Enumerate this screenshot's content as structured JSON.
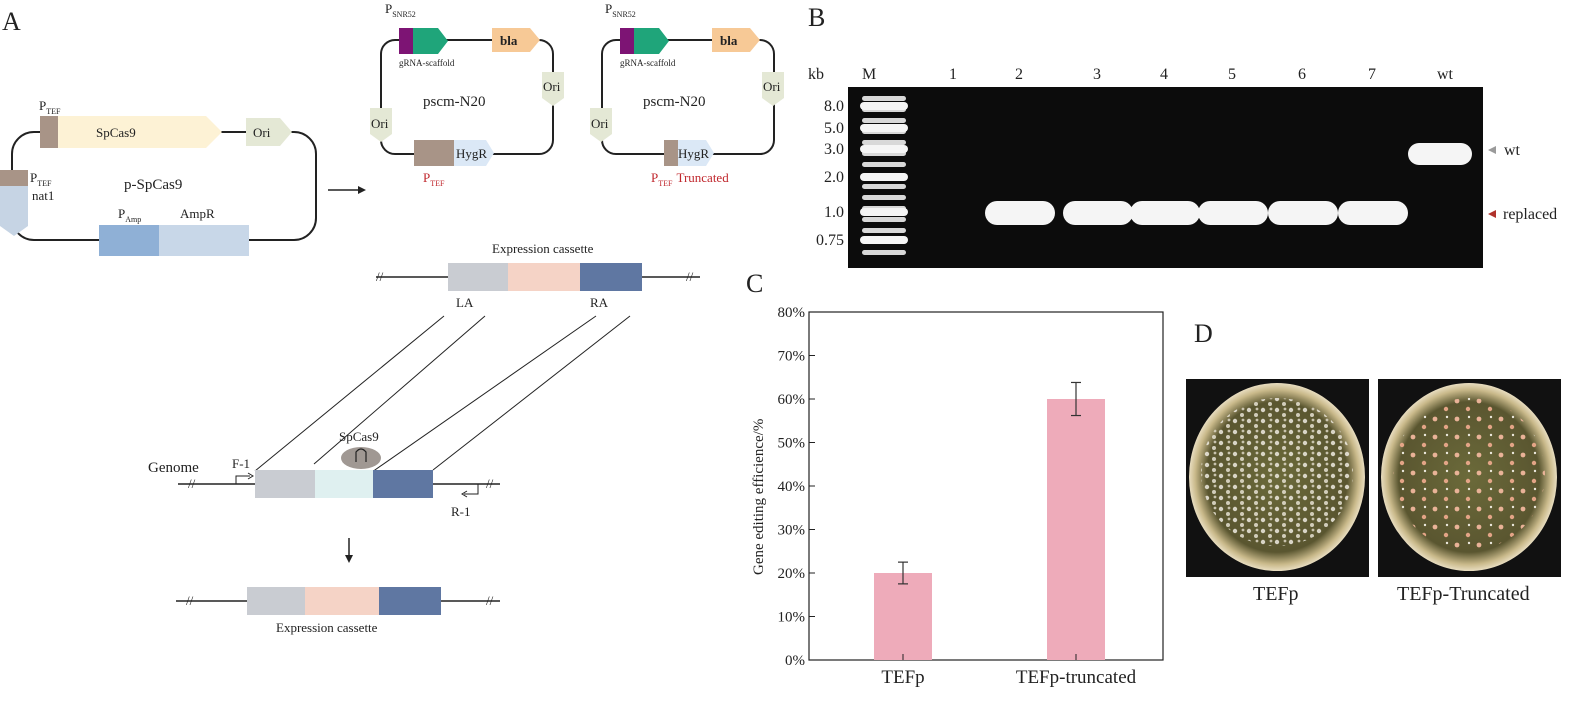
{
  "panels": {
    "A": "A",
    "B": "B",
    "C": "C",
    "D": "D"
  },
  "panel_a": {
    "plasmid1": {
      "name": "p-SpCas9",
      "ptef_top": "P",
      "ptef_top_sub": "TEF",
      "spcas9": "SpCas9",
      "ori": "Ori",
      "ptef_left": "P",
      "ptef_left_sub": "TEF",
      "nat1": "nat1",
      "pamp": "P",
      "pamp_sub": "Amp",
      "ampr": "AmpR"
    },
    "plasmid2": {
      "psnr": "P",
      "psnr_sub": "SNR52",
      "scaffold": "gRNA-scaffold",
      "bla": "bla",
      "ori_right": "Ori",
      "name": "pscm-N20",
      "ori_left": "Ori",
      "hygr": "HygR",
      "ptef": "P",
      "ptef_sub": "TEF"
    },
    "plasmid3": {
      "psnr": "P",
      "psnr_sub": "SNR52",
      "scaffold": "gRNA-scaffold",
      "bla": "bla",
      "ori_right": "Ori",
      "name": "pscm-N20",
      "ori_left": "Ori",
      "hygr": "HygR",
      "ptef": "P",
      "ptef_sub": "TEF",
      "truncated": "Truncated"
    },
    "cassette_top": {
      "title": "Expression cassette",
      "la": "LA",
      "ra": "RA",
      "break_left": "//",
      "break_right": "//"
    },
    "genome": {
      "label": "Genome",
      "spcas9": "SpCas9",
      "f1": "F-1",
      "r1": "R-1",
      "break_left": "//",
      "break_right": "//"
    },
    "cassette_bottom": {
      "title": "Expression cassette",
      "break_left": "//",
      "break_right": "//"
    }
  },
  "panel_b": {
    "kb_label": "kb",
    "marker_label": "M",
    "lanes": [
      "1",
      "2",
      "3",
      "4",
      "5",
      "6",
      "7",
      "wt"
    ],
    "ladder_kb": [
      "8.0",
      "5.0",
      "3.0",
      "2.0",
      "1.0",
      "0.75"
    ],
    "right_labels": [
      "wt",
      "replaced"
    ],
    "colors": {
      "gel_bg": "#0c0c0c",
      "band": "#f5f5f5",
      "wt_arrow": "#9a9a9a",
      "replaced_arrow": "#b0322c"
    }
  },
  "panel_d": {
    "plate_labels": [
      "TEFp",
      "TEFp-Truncated"
    ]
  },
  "chart_data": {
    "type": "bar",
    "categories": [
      "TEFp",
      "TEFp-truncated"
    ],
    "values": [
      20,
      60
    ],
    "errors": [
      2.5,
      3.8
    ],
    "ylabel": "Gene editing efficience/%",
    "xlabel": "",
    "ylim": [
      0,
      80
    ],
    "yticks": [
      "0%",
      "10%",
      "20%",
      "30%",
      "40%",
      "50%",
      "60%",
      "70%",
      "80%"
    ],
    "bar_color": "#eeabba"
  }
}
